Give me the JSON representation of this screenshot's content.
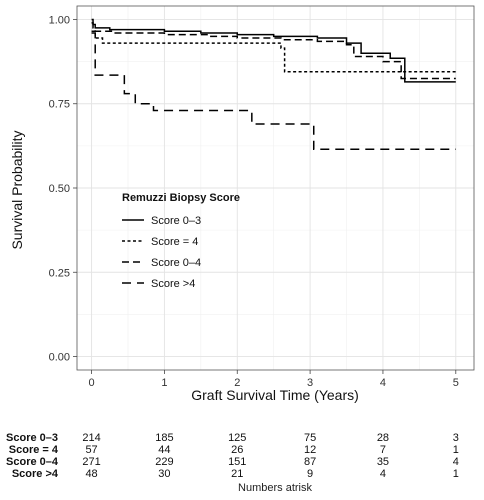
{
  "chart_data": {
    "type": "line",
    "subtype": "step",
    "title": "",
    "xlabel": "Graft Survival Time (Years)",
    "ylabel": "Survival Probability",
    "xlim": [
      -0.2,
      5.25
    ],
    "ylim": [
      -0.04,
      1.04
    ],
    "xticks": [
      0,
      1,
      2,
      3,
      4,
      5
    ],
    "yticks": [
      0,
      0.25,
      0.5,
      0.75,
      1.0
    ],
    "ytick_labels": [
      "0.00",
      "0.25",
      "0.50",
      "0.75",
      "1.00"
    ],
    "grid": true,
    "background": "#ffffff",
    "grid_color": "#e3e3e3",
    "legend": {
      "title": "Remuzzi Biopsy Score",
      "placement": "inside-center-left",
      "entries": [
        {
          "label": "Score 0–3",
          "dash": "solid"
        },
        {
          "label": "Score = 4",
          "dash": "dotted"
        },
        {
          "label": "Score 0–4",
          "dash": "dashed"
        },
        {
          "label": "Score >4",
          "dash": "longdash"
        }
      ]
    },
    "series": [
      {
        "name": "Score 0–3",
        "dash": "solid",
        "color": "#000000",
        "points": [
          [
            0,
            1.0
          ],
          [
            0.02,
            0.985
          ],
          [
            0.05,
            0.975
          ],
          [
            0.25,
            0.97
          ],
          [
            1.0,
            0.965
          ],
          [
            1.5,
            0.96
          ],
          [
            2.0,
            0.955
          ],
          [
            2.5,
            0.95
          ],
          [
            3.1,
            0.945
          ],
          [
            3.5,
            0.93
          ],
          [
            3.7,
            0.9
          ],
          [
            4.1,
            0.885
          ],
          [
            4.3,
            0.815
          ],
          [
            5.0,
            0.815
          ]
        ]
      },
      {
        "name": "Score = 4",
        "dash": "dotted",
        "color": "#000000",
        "points": [
          [
            0,
            0.965
          ],
          [
            0.05,
            0.945
          ],
          [
            0.15,
            0.93
          ],
          [
            1.0,
            0.93
          ],
          [
            2.2,
            0.93
          ],
          [
            2.6,
            0.915
          ],
          [
            2.65,
            0.845
          ],
          [
            3.4,
            0.845
          ],
          [
            4.2,
            0.845
          ],
          [
            5.0,
            0.845
          ]
        ]
      },
      {
        "name": "Score 0–4",
        "dash": "dashed",
        "color": "#000000",
        "points": [
          [
            0,
            0.99
          ],
          [
            0.02,
            0.975
          ],
          [
            0.05,
            0.965
          ],
          [
            0.3,
            0.96
          ],
          [
            1.0,
            0.955
          ],
          [
            1.6,
            0.95
          ],
          [
            2.0,
            0.945
          ],
          [
            2.6,
            0.94
          ],
          [
            3.1,
            0.935
          ],
          [
            3.5,
            0.925
          ],
          [
            3.6,
            0.89
          ],
          [
            4.0,
            0.875
          ],
          [
            4.25,
            0.825
          ],
          [
            5.0,
            0.825
          ]
        ]
      },
      {
        "name": "Score >4",
        "dash": "longdash",
        "color": "#000000",
        "points": [
          [
            0,
            0.96
          ],
          [
            0.05,
            0.835
          ],
          [
            0.45,
            0.78
          ],
          [
            0.6,
            0.75
          ],
          [
            0.85,
            0.73
          ],
          [
            1.0,
            0.73
          ],
          [
            2.2,
            0.69
          ],
          [
            3.0,
            0.69
          ],
          [
            3.05,
            0.615
          ],
          [
            4.0,
            0.615
          ],
          [
            5.0,
            0.615
          ]
        ]
      }
    ],
    "risk_table": {
      "caption": "Numbers atrisk",
      "times": [
        0,
        1,
        2,
        3,
        4,
        5
      ],
      "rows": [
        {
          "name": "Score 0–3",
          "values": [
            "214",
            "185",
            "125",
            "75",
            "28",
            "3"
          ]
        },
        {
          "name": "Score = 4",
          "values": [
            "57",
            "44",
            "26",
            "12",
            "7",
            "1"
          ]
        },
        {
          "name": "Score 0–4",
          "values": [
            "271",
            "229",
            "151",
            "87",
            "35",
            "4"
          ]
        },
        {
          "name": "Score >4",
          "values": [
            "48",
            "30",
            "21",
            "9",
            "4",
            "1"
          ]
        }
      ]
    }
  }
}
